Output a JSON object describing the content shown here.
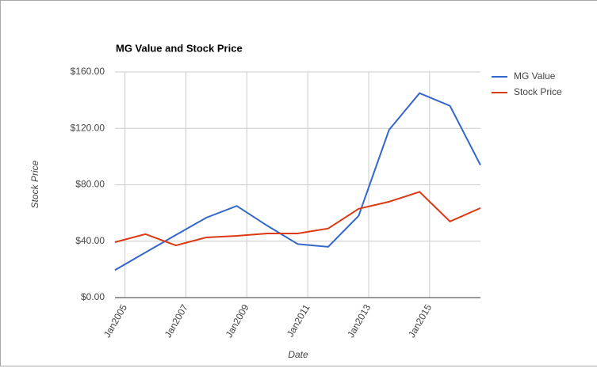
{
  "chart_data": {
    "type": "line",
    "title": "MG Value and Stock Price",
    "x_label": "Date",
    "y_label": "Stock Price",
    "x": [
      2004.67,
      2005.67,
      2006.67,
      2007.67,
      2008.67,
      2009.67,
      2010.67,
      2011.67,
      2012.67,
      2013.67,
      2014.67,
      2015.67,
      2016.67
    ],
    "series": [
      {
        "name": "MG Value",
        "color": "#3366cc",
        "values": [
          19.5,
          32,
          44.4,
          56.7,
          65,
          51,
          38,
          36,
          58,
          119,
          145,
          136,
          94
        ]
      },
      {
        "name": "Stock Price",
        "color": "#dc3912",
        "values": [
          39.3,
          45,
          37,
          42.7,
          43.8,
          45.5,
          45.5,
          49,
          63,
          68,
          75,
          54,
          63.5
        ]
      }
    ],
    "xlim": [
      2004.67,
      2016.67
    ],
    "xticks": [
      {
        "value": 2005,
        "label": "Jan2005"
      },
      {
        "value": 2007,
        "label": "Jan2007"
      },
      {
        "value": 2009,
        "label": "Jan2009"
      },
      {
        "value": 2011,
        "label": "Jan2011"
      },
      {
        "value": 2013,
        "label": "Jan2013"
      },
      {
        "value": 2015,
        "label": "Jan2015"
      }
    ],
    "ylim": [
      0,
      160
    ],
    "yticks": [
      {
        "value": 0,
        "label": "$0.00"
      },
      {
        "value": 40,
        "label": "$40.00"
      },
      {
        "value": 80,
        "label": "$80.00"
      },
      {
        "value": 120,
        "label": "$120.00"
      },
      {
        "value": 160,
        "label": "$160.00"
      }
    ],
    "grid": true,
    "legend": "right"
  }
}
